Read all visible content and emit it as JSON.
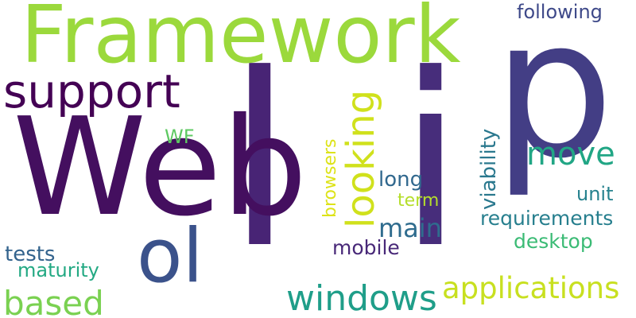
{
  "words": [
    {
      "id": "p",
      "text": "p",
      "color": "#433e85"
    },
    {
      "id": "l",
      "text": "l",
      "color": "#482475"
    },
    {
      "id": "i",
      "text": "i",
      "color": "#472d7b"
    },
    {
      "id": "web",
      "text": "Web",
      "color": "#440f5f"
    },
    {
      "id": "framework",
      "text": "Framework",
      "color": "#9bd93c"
    },
    {
      "id": "support",
      "text": "support",
      "color": "#440154"
    },
    {
      "id": "ol",
      "text": "ol",
      "color": "#3b528b"
    },
    {
      "id": "looking",
      "text": "looking",
      "color": "#d0e11c"
    },
    {
      "id": "move",
      "text": "move",
      "color": "#21a685"
    },
    {
      "id": "windows",
      "text": "windows",
      "color": "#1f9e89"
    },
    {
      "id": "applications",
      "text": "applications",
      "color": "#c8e020"
    },
    {
      "id": "based",
      "text": "based",
      "color": "#7ad151"
    },
    {
      "id": "following",
      "text": "following",
      "color": "#3e4989"
    },
    {
      "id": "viability",
      "text": "viability",
      "color": "#2a788e"
    },
    {
      "id": "browsers",
      "text": "browsers",
      "color": "#dde318"
    },
    {
      "id": "wf",
      "text": "WF",
      "color": "#5ec962"
    },
    {
      "id": "long",
      "text": "long",
      "color": "#31688e"
    },
    {
      "id": "term",
      "text": "term",
      "color": "#b5de2b"
    },
    {
      "id": "main",
      "text": "main",
      "color": "#2f6c8e"
    },
    {
      "id": "unit",
      "text": "unit",
      "color": "#26828e"
    },
    {
      "id": "requirements",
      "text": "requirements",
      "color": "#277f8e"
    },
    {
      "id": "desktop",
      "text": "desktop",
      "color": "#3bbb75"
    },
    {
      "id": "mobile",
      "text": "mobile",
      "color": "#482878"
    },
    {
      "id": "tests",
      "text": "tests",
      "color": "#33638d"
    },
    {
      "id": "maturity",
      "text": "maturity",
      "color": "#23a983"
    }
  ]
}
